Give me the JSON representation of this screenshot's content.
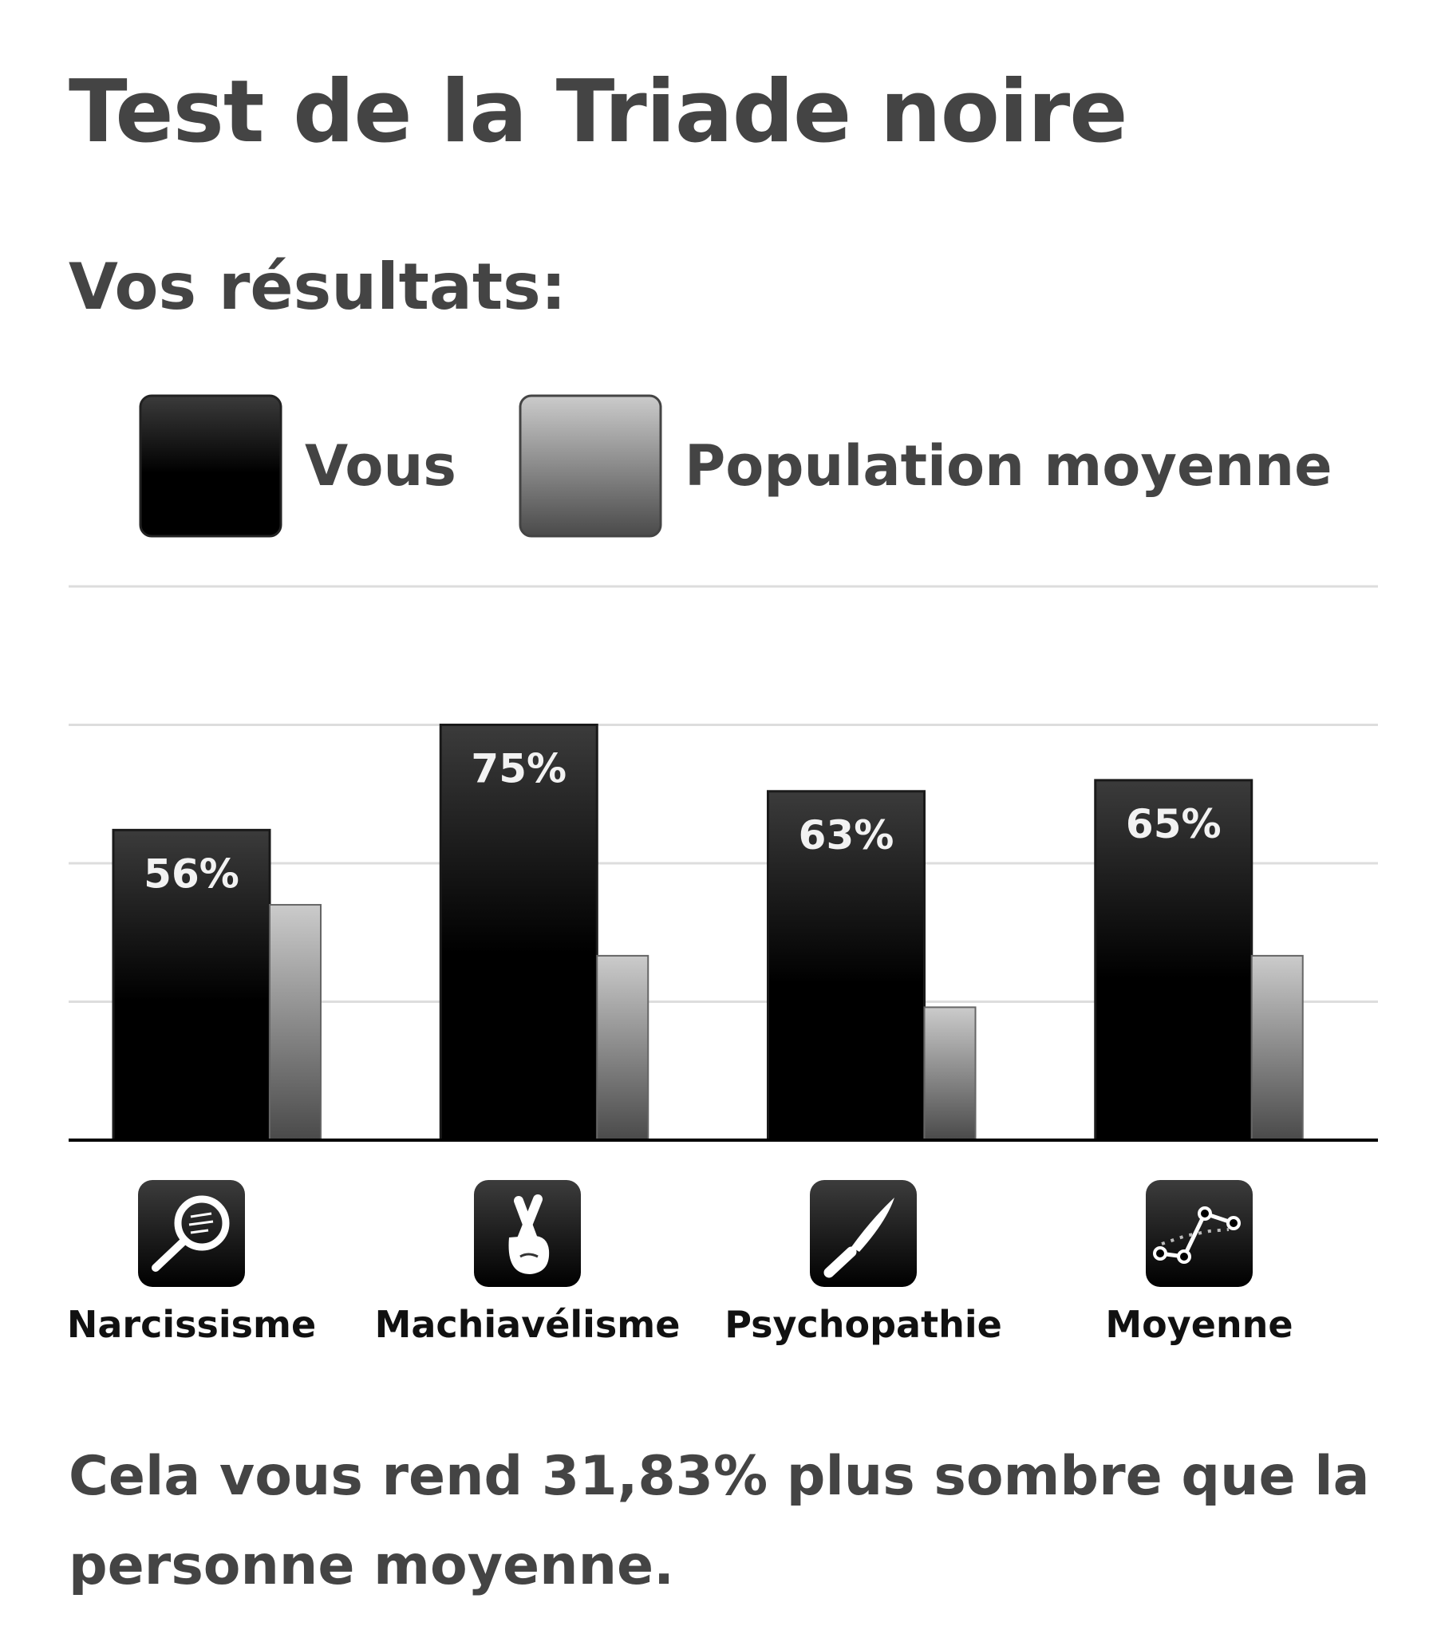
{
  "page": {
    "title": "Test de la Triade noire",
    "results_heading": "Vos résultats:",
    "summary": "Cela vous rend 31,83% plus sombre que la personne moyenne."
  },
  "chart_data": {
    "type": "bar",
    "categories": [
      "Narcissisme",
      "Machiavélisme",
      "Psychopathie",
      "Moyenne"
    ],
    "category_icons": [
      "hand-mirror-icon",
      "crossed-fingers-icon",
      "knife-icon",
      "line-graph-icon"
    ],
    "series": [
      {
        "name": "Vous",
        "values": [
          56,
          75,
          63,
          65
        ],
        "labels": [
          "56%",
          "75%",
          "63%",
          "65%"
        ]
      },
      {
        "name": "Population moyenne",
        "values": [
          42.5,
          33.3,
          24,
          33.3
        ]
      }
    ],
    "ylim": [
      0,
      100
    ],
    "grid": true,
    "legend": "top-left"
  },
  "colors": {
    "vous_top": "#3b3b3b",
    "vous_bottom": "#000000",
    "population_top": "#c8c8c8",
    "population_bottom": "#4d4d4d",
    "gridline": "#dddddd",
    "baseline": "#000000",
    "text": "#444444"
  }
}
